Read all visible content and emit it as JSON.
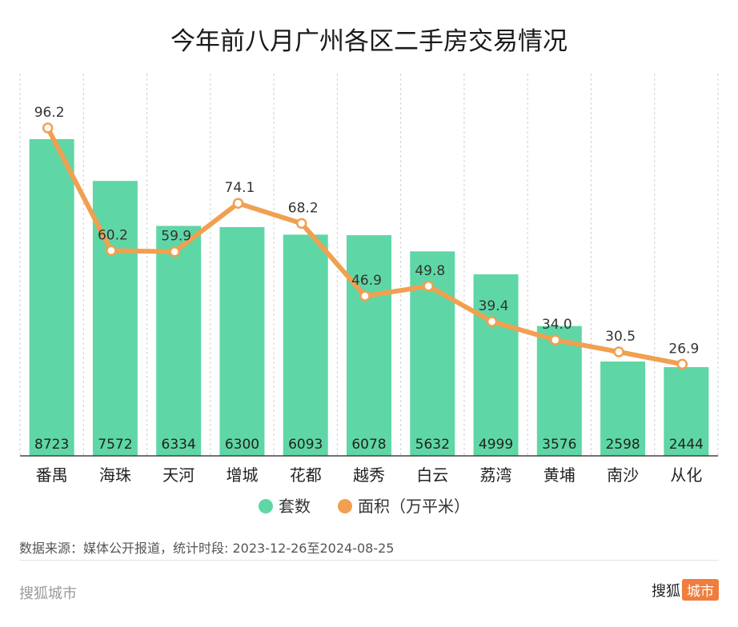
{
  "title": "今年前八月广州各区二手房交易情况",
  "source_note": "数据来源：媒体公开报道，统计时段: 2023-12-26至2024-08-25",
  "footer": {
    "left": "搜狐城市",
    "brand": "搜狐",
    "brand_tag": "城市"
  },
  "colors": {
    "bar": "#5fd6a5",
    "line": "#f0a050",
    "marker_fill": "#ffffff"
  },
  "chart_data": {
    "type": "bar",
    "title": "今年前八月广州各区二手房交易情况",
    "xlabel": "",
    "ylabel": "",
    "categories": [
      "番禺",
      "海珠",
      "天河",
      "增城",
      "花都",
      "越秀",
      "白云",
      "荔湾",
      "黄埔",
      "南沙",
      "从化"
    ],
    "series": [
      {
        "name": "套数",
        "type": "bar",
        "values": [
          8723,
          7572,
          6334,
          6300,
          6093,
          6078,
          5632,
          4999,
          3576,
          2598,
          2444
        ]
      },
      {
        "name": "面积（万平米）",
        "type": "line",
        "values": [
          96.2,
          60.2,
          59.9,
          74.1,
          68.2,
          46.9,
          49.8,
          39.4,
          34.0,
          30.5,
          26.9
        ]
      }
    ],
    "bar_ylim": [
      0,
      9750
    ],
    "line_ylim": [
      0,
      103
    ],
    "legend_position": "bottom",
    "grid": "vertical dashed"
  }
}
